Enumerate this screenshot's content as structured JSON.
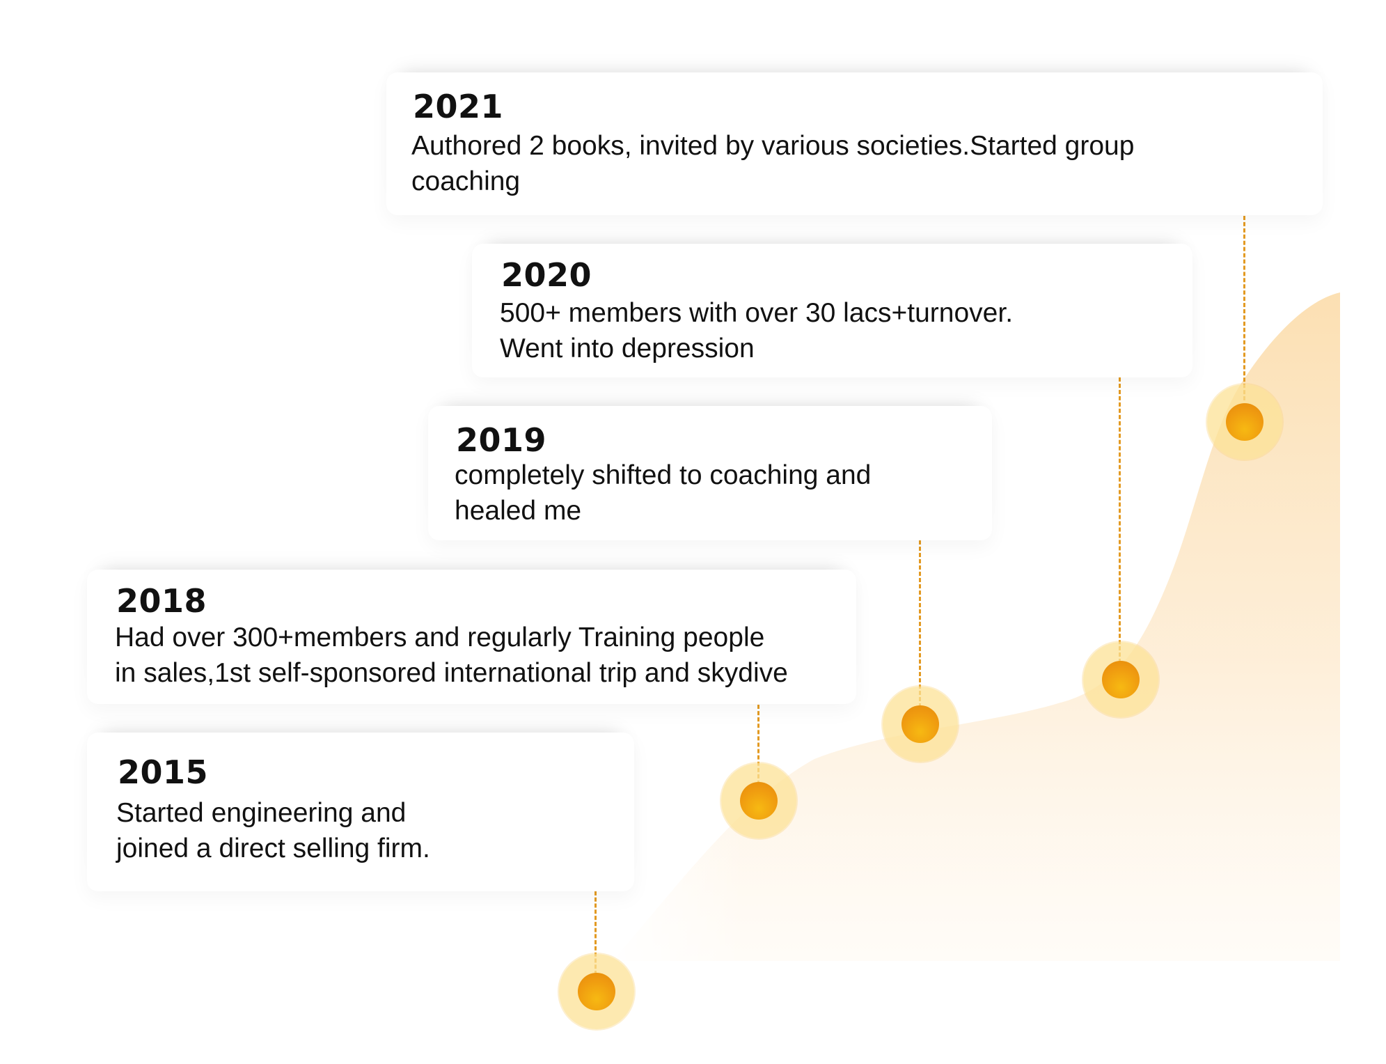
{
  "colors": {
    "accent": "#f0a010",
    "dot_halo": "#fce296",
    "dashed_line": "#e39a22",
    "area_fill": "#fbe3bd",
    "text": "#111111"
  },
  "timeline": [
    {
      "year": "2015",
      "lines": [
        "Started engineering and",
        "joined a direct selling firm."
      ]
    },
    {
      "year": "2018",
      "lines": [
        "Had over 300+members and regularly Training people",
        "in sales,1st self-sponsored international trip and skydive"
      ]
    },
    {
      "year": "2019",
      "lines": [
        "completely shifted to coaching and",
        "healed me"
      ]
    },
    {
      "year": "2020",
      "lines": [
        "500+ members with over 30 lacs+turnover.",
        "Went into depression"
      ]
    },
    {
      "year": "2021",
      "lines": [
        "Authored 2 books, invited by various societies.Started group",
        "coaching"
      ]
    }
  ]
}
